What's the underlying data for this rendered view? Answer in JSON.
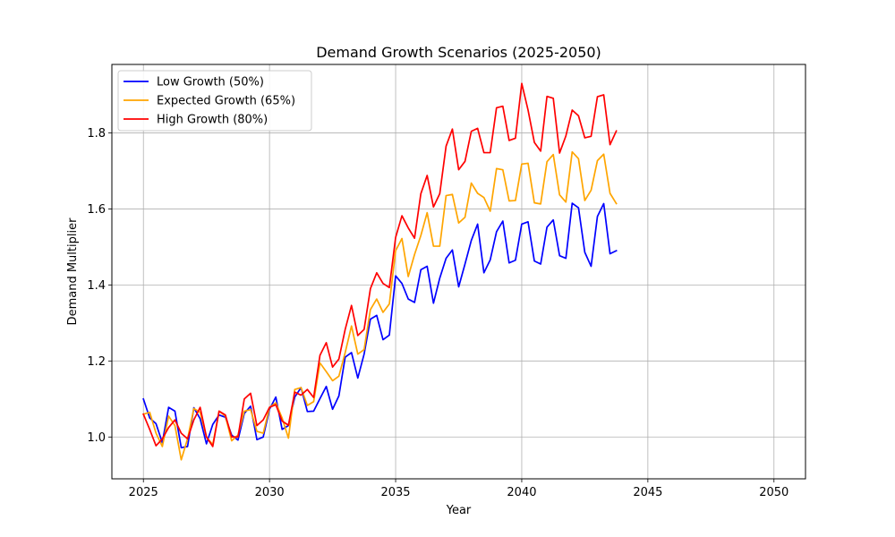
{
  "chart_data": {
    "type": "line",
    "title": "Demand Growth Scenarios (2025-2050)",
    "xlabel": "Year",
    "ylabel": "Demand Multiplier",
    "xlim": [
      2023.75,
      2051.25
    ],
    "ylim": [
      0.89,
      1.98
    ],
    "xticks": [
      2025,
      2030,
      2035,
      2040,
      2045,
      2050
    ],
    "yticks": [
      1.0,
      1.2,
      1.4,
      1.6,
      1.8
    ],
    "ytick_labels": [
      "1.0",
      "1.2",
      "1.4",
      "1.6",
      "1.8"
    ],
    "grid": true,
    "legend_position": "top-left",
    "x_start": 2025,
    "x_step": 0.25,
    "series": [
      {
        "name": "Low Growth (50%)",
        "color": "#0000ff",
        "values": [
          1.1,
          1.05,
          1.035,
          0.985,
          1.078,
          1.068,
          0.972,
          0.975,
          1.077,
          1.048,
          0.982,
          1.033,
          1.058,
          1.052,
          1.005,
          0.992,
          1.062,
          1.081,
          0.993,
          1.0,
          1.073,
          1.105,
          1.02,
          1.03,
          1.105,
          1.13,
          1.067,
          1.068,
          1.101,
          1.133,
          1.073,
          1.108,
          1.21,
          1.222,
          1.155,
          1.218,
          1.31,
          1.32,
          1.256,
          1.268,
          1.424,
          1.404,
          1.363,
          1.354,
          1.44,
          1.449,
          1.352,
          1.418,
          1.47,
          1.492,
          1.395,
          1.455,
          1.517,
          1.56,
          1.432,
          1.466,
          1.54,
          1.568,
          1.458,
          1.465,
          1.56,
          1.566,
          1.463,
          1.455,
          1.552,
          1.571,
          1.477,
          1.47,
          1.615,
          1.603,
          1.486,
          1.449,
          1.58,
          1.614,
          1.482,
          1.49
        ]
      },
      {
        "name": "Expected Growth (65%)",
        "color": "#ffa500",
        "values": [
          1.06,
          1.065,
          1.01,
          0.975,
          1.055,
          1.03,
          0.94,
          0.995,
          1.075,
          1.065,
          1.0,
          0.98,
          1.068,
          1.055,
          0.99,
          1.005,
          1.068,
          1.072,
          1.015,
          1.01,
          1.078,
          1.09,
          1.05,
          0.997,
          1.125,
          1.13,
          1.083,
          1.093,
          1.195,
          1.172,
          1.148,
          1.16,
          1.222,
          1.292,
          1.218,
          1.23,
          1.335,
          1.363,
          1.328,
          1.35,
          1.49,
          1.522,
          1.422,
          1.48,
          1.53,
          1.59,
          1.502,
          1.502,
          1.635,
          1.638,
          1.563,
          1.578,
          1.668,
          1.641,
          1.63,
          1.594,
          1.706,
          1.703,
          1.621,
          1.622,
          1.718,
          1.72,
          1.616,
          1.613,
          1.724,
          1.743,
          1.637,
          1.618,
          1.75,
          1.732,
          1.622,
          1.649,
          1.727,
          1.744,
          1.641,
          1.614
        ]
      },
      {
        "name": "High Growth (80%)",
        "color": "#ff0000",
        "values": [
          1.06,
          1.02,
          0.977,
          0.995,
          1.025,
          1.045,
          1.01,
          0.995,
          1.045,
          1.078,
          1.0,
          0.975,
          1.068,
          1.058,
          1.0,
          1.0,
          1.1,
          1.115,
          1.03,
          1.045,
          1.078,
          1.085,
          1.042,
          1.031,
          1.118,
          1.11,
          1.125,
          1.104,
          1.215,
          1.248,
          1.184,
          1.205,
          1.283,
          1.346,
          1.267,
          1.283,
          1.39,
          1.432,
          1.404,
          1.393,
          1.525,
          1.582,
          1.55,
          1.523,
          1.64,
          1.688,
          1.605,
          1.64,
          1.765,
          1.81,
          1.703,
          1.725,
          1.804,
          1.812,
          1.748,
          1.748,
          1.866,
          1.87,
          1.78,
          1.786,
          1.93,
          1.86,
          1.775,
          1.752,
          1.896,
          1.891,
          1.747,
          1.792,
          1.86,
          1.845,
          1.787,
          1.791,
          1.895,
          1.9,
          1.769,
          1.805
        ]
      }
    ]
  }
}
